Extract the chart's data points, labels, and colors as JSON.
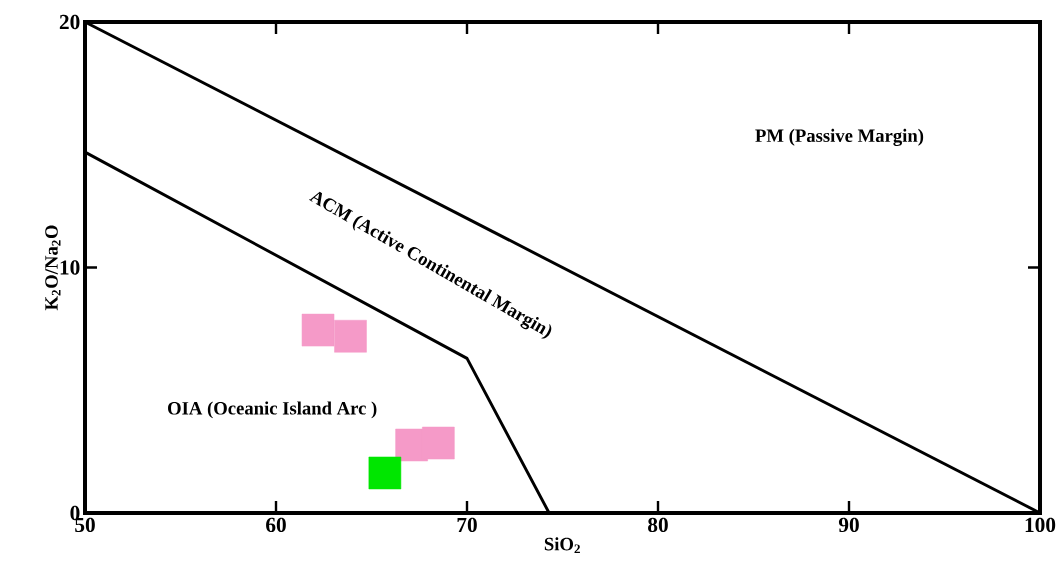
{
  "chart_data": {
    "type": "scatter",
    "xlabel": "SiO$_{2}$",
    "ylabel": "K$_{2}$O/Na$_{2}$O",
    "xlim": [
      50,
      100
    ],
    "ylim": [
      0,
      20
    ],
    "xticks": [
      50,
      60,
      70,
      80,
      90,
      100
    ],
    "yticks": [
      0,
      10,
      20
    ],
    "grid": false,
    "series": [
      {
        "type": "line",
        "color": "#000000",
        "marker": "none",
        "line_style": "solid",
        "x": [
          50,
          100
        ],
        "values": [
          20,
          0
        ]
      },
      {
        "type": "line",
        "color": "#000000",
        "marker": "none",
        "line_style": "solid",
        "x": [
          50,
          70,
          74.3
        ],
        "values": [
          14.7,
          6.3,
          0
        ]
      },
      {
        "color": "#f59ac8",
        "marker": "square",
        "x": [
          62.2,
          63.9,
          67.1,
          68.5
        ],
        "values": [
          7.45,
          7.2,
          2.77,
          2.85
        ]
      },
      {
        "color": "#00e600",
        "marker": "square",
        "x": [
          65.7
        ],
        "values": [
          1.63
        ]
      }
    ],
    "annotations": [
      "PM (Passive Margin)",
      "ACM (Active Continental Margin)",
      "OIA (Oceanic Island Arc )"
    ]
  }
}
